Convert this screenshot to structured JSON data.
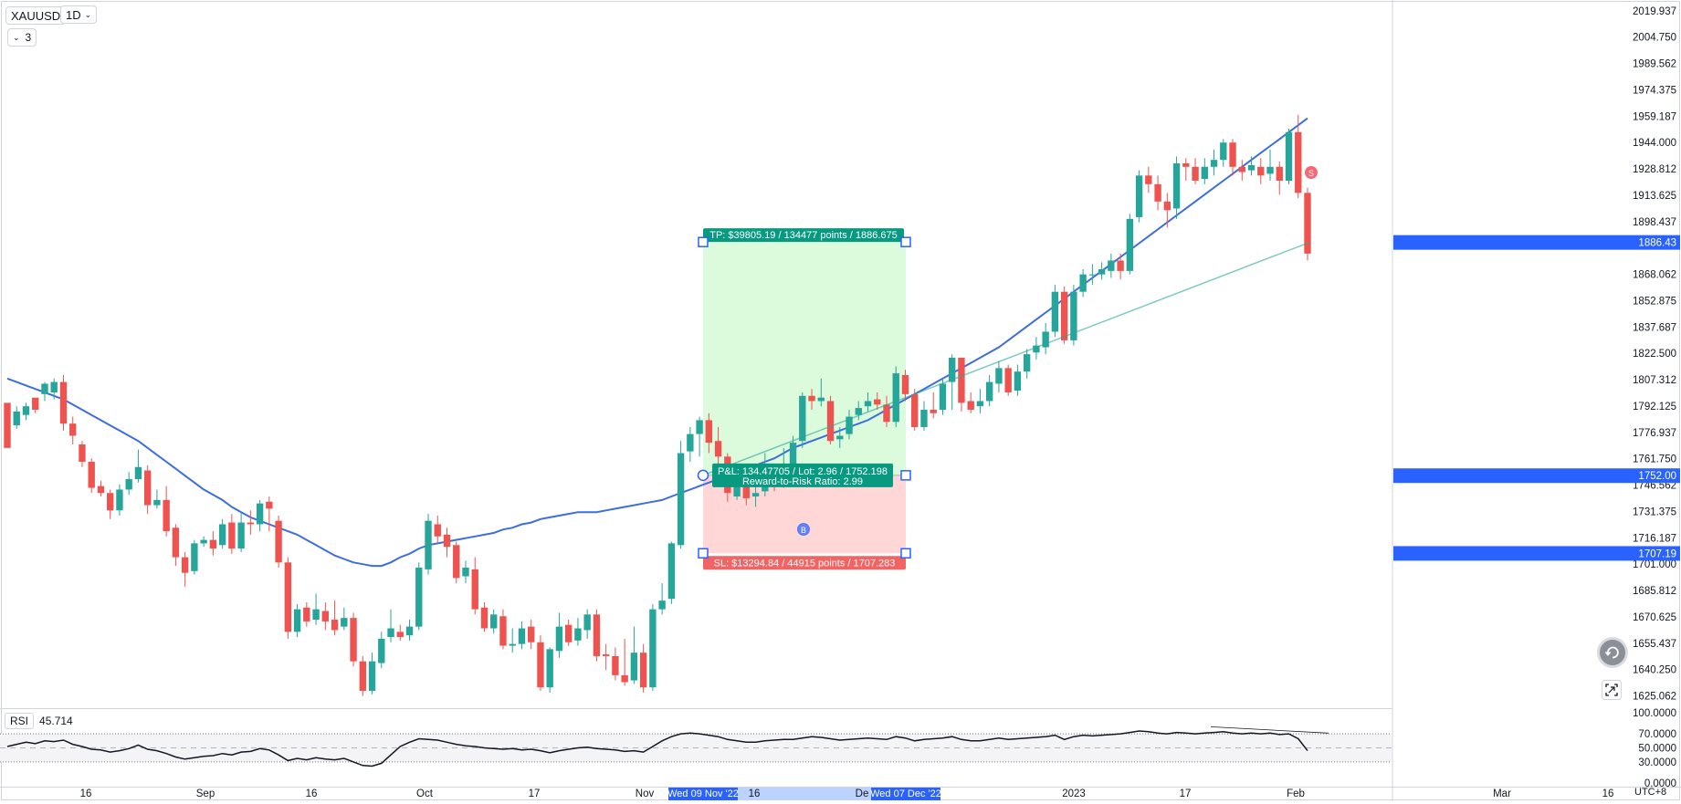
{
  "header": {
    "symbol": "XAUUSD",
    "interval": "1D",
    "indicator_count": "3"
  },
  "price_axis": {
    "ticks": [
      2019.937,
      2004.75,
      1989.562,
      1974.375,
      1959.187,
      1944.0,
      1928.812,
      1913.625,
      1898.437,
      1868.062,
      1852.875,
      1837.687,
      1822.5,
      1807.312,
      1792.125,
      1776.937,
      1761.75,
      1746.562,
      1731.375,
      1716.187,
      1701.0,
      1685.812,
      1670.625,
      1655.437,
      1640.25,
      1625.062
    ],
    "badges": [
      {
        "label": "1886.43",
        "value": 1886.43,
        "color": "#2962ff"
      },
      {
        "label": "1752.00",
        "value": 1752.004,
        "color": "#2962ff"
      },
      {
        "label": "1707.19",
        "value": 1707.193,
        "color": "#2962ff"
      }
    ]
  },
  "time_axis": {
    "labels": [
      "16",
      "Sep",
      "16",
      "Oct",
      "17",
      "Nov",
      "16",
      "De",
      "2023",
      "17",
      "Feb",
      "Mar",
      "16"
    ],
    "highlights": [
      "Wed 09 Nov '22",
      "Wed 07 Dec '22"
    ],
    "timezone": "UTC+8"
  },
  "position_tool": {
    "tp_label": "TP: $39805.19 / 134477 points / 1886.675",
    "sl_label": "SL: $13294.84 / 44915 points / 1707.283",
    "pnl_label": "P&L: 134.47705 / Lot: 2.96 / 1752.198",
    "rr_label": "Reward-to-Risk Ratio: 2.99",
    "entry": 1752.198,
    "take_profit": 1886.675,
    "stop_loss": 1707.283,
    "profit_color": "#089981",
    "loss_color": "#f23645"
  },
  "markers": {
    "buy_label": "B",
    "sell_label": "S"
  },
  "rsi": {
    "name": "RSI",
    "value": "45.714",
    "axis_ticks": [
      "100.0000",
      "70.0000",
      "50.0000",
      "30.0000",
      "0.0000"
    ],
    "upper_band": 70,
    "lower_band": 30,
    "mid": 50
  },
  "chart_data": {
    "type": "candlestick",
    "series": [
      {
        "name": "",
        "values": [
          [
            1794,
            1768,
            1770,
            1793
          ],
          [
            1781,
            1789,
            1792,
            1779
          ],
          [
            1787,
            1792,
            1794,
            1784
          ],
          [
            1797,
            1790,
            1792,
            1788
          ],
          [
            1799,
            1805,
            1806,
            1795
          ],
          [
            1800,
            1806,
            1808,
            1796
          ],
          [
            1806,
            1782,
            1810,
            1778
          ],
          [
            1782,
            1775,
            1786,
            1770
          ],
          [
            1770,
            1760,
            1772,
            1757
          ],
          [
            1760,
            1745,
            1762,
            1742
          ],
          [
            1746,
            1742,
            1749,
            1740
          ],
          [
            1742,
            1732,
            1744,
            1727
          ],
          [
            1732,
            1744,
            1747,
            1729
          ],
          [
            1744,
            1750,
            1754,
            1741
          ],
          [
            1750,
            1757,
            1767,
            1748
          ],
          [
            1755,
            1735,
            1758,
            1730
          ],
          [
            1735,
            1738,
            1744,
            1733
          ],
          [
            1738,
            1720,
            1746,
            1717
          ],
          [
            1722,
            1705,
            1724,
            1700
          ],
          [
            1705,
            1696,
            1708,
            1688
          ],
          [
            1697,
            1713,
            1715,
            1695
          ],
          [
            1713,
            1715,
            1717,
            1711
          ],
          [
            1715,
            1710,
            1720,
            1706
          ],
          [
            1712,
            1724,
            1727,
            1710
          ],
          [
            1725,
            1710,
            1730,
            1707
          ],
          [
            1710,
            1725,
            1731,
            1708
          ],
          [
            1725,
            1724,
            1732,
            1718
          ],
          [
            1724,
            1736,
            1738,
            1720
          ],
          [
            1737,
            1733,
            1740,
            1720
          ],
          [
            1726,
            1702,
            1729,
            1699
          ],
          [
            1702,
            1662,
            1705,
            1658
          ],
          [
            1662,
            1675,
            1678,
            1659
          ],
          [
            1676,
            1668,
            1679,
            1665
          ],
          [
            1669,
            1675,
            1684,
            1666
          ],
          [
            1674,
            1668,
            1679,
            1663
          ],
          [
            1669,
            1663,
            1680,
            1660
          ],
          [
            1665,
            1670,
            1676,
            1663
          ],
          [
            1670,
            1645,
            1673,
            1642
          ],
          [
            1645,
            1628,
            1648,
            1625
          ],
          [
            1628,
            1645,
            1650,
            1626
          ],
          [
            1644,
            1658,
            1662,
            1641
          ],
          [
            1659,
            1664,
            1675,
            1656
          ],
          [
            1662,
            1659,
            1666,
            1657
          ],
          [
            1660,
            1665,
            1669,
            1657
          ],
          [
            1665,
            1699,
            1702,
            1663
          ],
          [
            1698,
            1726,
            1730,
            1695
          ],
          [
            1724,
            1717,
            1729,
            1713
          ],
          [
            1718,
            1711,
            1722,
            1705
          ],
          [
            1712,
            1693,
            1714,
            1690
          ],
          [
            1694,
            1699,
            1703,
            1690
          ],
          [
            1698,
            1675,
            1705,
            1672
          ],
          [
            1676,
            1664,
            1679,
            1662
          ],
          [
            1664,
            1672,
            1675,
            1661
          ],
          [
            1671,
            1654,
            1675,
            1652
          ],
          [
            1654,
            1655,
            1664,
            1650
          ],
          [
            1655,
            1664,
            1668,
            1652
          ],
          [
            1665,
            1656,
            1669,
            1652
          ],
          [
            1656,
            1630,
            1660,
            1628
          ],
          [
            1630,
            1652,
            1653,
            1627
          ],
          [
            1651,
            1665,
            1673,
            1647
          ],
          [
            1666,
            1656,
            1669,
            1654
          ],
          [
            1657,
            1664,
            1670,
            1654
          ],
          [
            1663,
            1672,
            1675,
            1658
          ],
          [
            1672,
            1648,
            1675,
            1645
          ],
          [
            1649,
            1648,
            1655,
            1640
          ],
          [
            1648,
            1637,
            1653,
            1634
          ],
          [
            1637,
            1633,
            1658,
            1631
          ],
          [
            1634,
            1650,
            1665,
            1632
          ],
          [
            1650,
            1630,
            1655,
            1627
          ],
          [
            1630,
            1675,
            1678,
            1628
          ],
          [
            1675,
            1680,
            1690,
            1672
          ],
          [
            1681,
            1713,
            1714,
            1678
          ],
          [
            1712,
            1765,
            1772,
            1710
          ],
          [
            1766,
            1776,
            1780,
            1760
          ],
          [
            1776,
            1784,
            1786,
            1763
          ],
          [
            1784,
            1771,
            1788,
            1765
          ],
          [
            1772,
            1763,
            1780,
            1758
          ],
          [
            1763,
            1742,
            1765,
            1737
          ],
          [
            1740,
            1750,
            1756,
            1738
          ],
          [
            1750,
            1739,
            1754,
            1735
          ],
          [
            1740,
            1742,
            1752,
            1734
          ],
          [
            1743,
            1754,
            1765,
            1740
          ],
          [
            1754,
            1746,
            1757,
            1743
          ],
          [
            1747,
            1752,
            1768,
            1745
          ],
          [
            1753,
            1771,
            1775,
            1750
          ],
          [
            1772,
            1798,
            1800,
            1768
          ],
          [
            1798,
            1795,
            1802,
            1790
          ],
          [
            1795,
            1797,
            1808,
            1792
          ],
          [
            1795,
            1772,
            1798,
            1770
          ],
          [
            1773,
            1775,
            1780,
            1768
          ],
          [
            1776,
            1786,
            1790,
            1773
          ],
          [
            1787,
            1791,
            1795,
            1784
          ],
          [
            1792,
            1795,
            1800,
            1789
          ],
          [
            1796,
            1793,
            1800,
            1790
          ],
          [
            1793,
            1783,
            1798,
            1780
          ],
          [
            1783,
            1811,
            1815,
            1780
          ],
          [
            1810,
            1799,
            1813,
            1795
          ],
          [
            1799,
            1780,
            1802,
            1778
          ],
          [
            1780,
            1790,
            1795,
            1778
          ],
          [
            1790,
            1788,
            1800,
            1785
          ],
          [
            1790,
            1805,
            1808,
            1787
          ],
          [
            1806,
            1820,
            1822,
            1790
          ],
          [
            1820,
            1794,
            1818,
            1789
          ],
          [
            1795,
            1790,
            1800,
            1788
          ],
          [
            1792,
            1795,
            1802,
            1788
          ],
          [
            1795,
            1806,
            1810,
            1792
          ],
          [
            1805,
            1814,
            1818,
            1800
          ],
          [
            1814,
            1800,
            1816,
            1798
          ],
          [
            1801,
            1812,
            1816,
            1798
          ],
          [
            1812,
            1822,
            1825,
            1808
          ],
          [
            1823,
            1827,
            1832,
            1819
          ],
          [
            1826,
            1835,
            1840,
            1822
          ],
          [
            1835,
            1858,
            1862,
            1832
          ],
          [
            1858,
            1830,
            1861,
            1828
          ],
          [
            1830,
            1858,
            1862,
            1827
          ],
          [
            1858,
            1868,
            1871,
            1855
          ],
          [
            1868,
            1868,
            1874,
            1862
          ],
          [
            1868,
            1871,
            1875,
            1865
          ],
          [
            1870,
            1876,
            1880,
            1866
          ],
          [
            1876,
            1870,
            1880,
            1865
          ],
          [
            1870,
            1900,
            1903,
            1868
          ],
          [
            1901,
            1925,
            1928,
            1898
          ],
          [
            1925,
            1920,
            1930,
            1915
          ],
          [
            1920,
            1910,
            1925,
            1905
          ],
          [
            1910,
            1905,
            1915,
            1895
          ],
          [
            1906,
            1932,
            1936,
            1900
          ],
          [
            1932,
            1930,
            1935,
            1922
          ],
          [
            1930,
            1922,
            1935,
            1920
          ],
          [
            1923,
            1930,
            1935,
            1920
          ],
          [
            1930,
            1934,
            1940,
            1925
          ],
          [
            1934,
            1944,
            1946,
            1930
          ],
          [
            1944,
            1930,
            1946,
            1925
          ],
          [
            1930,
            1927,
            1934,
            1922
          ],
          [
            1928,
            1931,
            1936,
            1925
          ],
          [
            1930,
            1925,
            1935,
            1920
          ],
          [
            1926,
            1930,
            1940,
            1922
          ],
          [
            1930,
            1922,
            1933,
            1914
          ],
          [
            1922,
            1950,
            1952,
            1920
          ],
          [
            1950,
            1915,
            1960,
            1912
          ],
          [
            1915,
            1880,
            1918,
            1876
          ]
        ]
      }
    ],
    "moving_average": [
      1808,
      1806,
      1804,
      1802,
      1800,
      1798,
      1796,
      1793,
      1790,
      1787,
      1784,
      1781,
      1778,
      1775,
      1772,
      1768,
      1764,
      1760,
      1756,
      1752,
      1748,
      1744,
      1741,
      1738,
      1734,
      1731,
      1728,
      1726,
      1724,
      1722,
      1720,
      1718,
      1715,
      1712,
      1709,
      1706,
      1704,
      1702,
      1701,
      1700,
      1700,
      1702,
      1705,
      1707,
      1710,
      1712,
      1713,
      1714,
      1715,
      1716,
      1717,
      1718,
      1719,
      1721,
      1722,
      1724,
      1725,
      1727,
      1728,
      1729,
      1730,
      1731,
      1731,
      1731,
      1732,
      1733,
      1734,
      1735,
      1736,
      1737,
      1738,
      1740,
      1742,
      1744,
      1746,
      1748,
      1750,
      1752,
      1754,
      1756,
      1758,
      1760,
      1762,
      1765,
      1768,
      1770,
      1772,
      1774,
      1776,
      1778,
      1780,
      1782,
      1784,
      1787,
      1790,
      1793,
      1796,
      1799,
      1802,
      1805,
      1808,
      1811,
      1814,
      1817,
      1820,
      1823,
      1826,
      1830,
      1834,
      1838,
      1842,
      1846,
      1850,
      1854,
      1858,
      1862,
      1866,
      1870,
      1874,
      1878,
      1882,
      1886,
      1890,
      1894,
      1898,
      1902,
      1906,
      1910,
      1914,
      1918,
      1922,
      1926,
      1930,
      1934,
      1938,
      1942,
      1946,
      1950,
      1954,
      1958
    ],
    "rsi_values": [
      52,
      55,
      58,
      56,
      60,
      59,
      61,
      55,
      52,
      48,
      47,
      44,
      46,
      49,
      54,
      48,
      46,
      42,
      37,
      34,
      36,
      38,
      39,
      42,
      40,
      44,
      45,
      49,
      47,
      40,
      32,
      35,
      33,
      36,
      34,
      33,
      35,
      30,
      25,
      24,
      28,
      40,
      52,
      58,
      63,
      62,
      61,
      58,
      55,
      53,
      52,
      50,
      49,
      48,
      49,
      47,
      48,
      46,
      43,
      46,
      48,
      50,
      51,
      49,
      48,
      47,
      45,
      46,
      44,
      52,
      60,
      66,
      70,
      71,
      70,
      68,
      66,
      62,
      60,
      58,
      58,
      60,
      61,
      62,
      62,
      64,
      66,
      65,
      63,
      61,
      62,
      63,
      64,
      63,
      62,
      66,
      64,
      60,
      62,
      63,
      64,
      66,
      62,
      60,
      60,
      62,
      64,
      62,
      63,
      64,
      65,
      66,
      68,
      62,
      66,
      68,
      67,
      68,
      69,
      70,
      72,
      74,
      73,
      71,
      70,
      72,
      71,
      70,
      71,
      72,
      73,
      71,
      70,
      71,
      70,
      71,
      69,
      70,
      63,
      46
    ],
    "ylim": [
      1618,
      2023
    ]
  }
}
